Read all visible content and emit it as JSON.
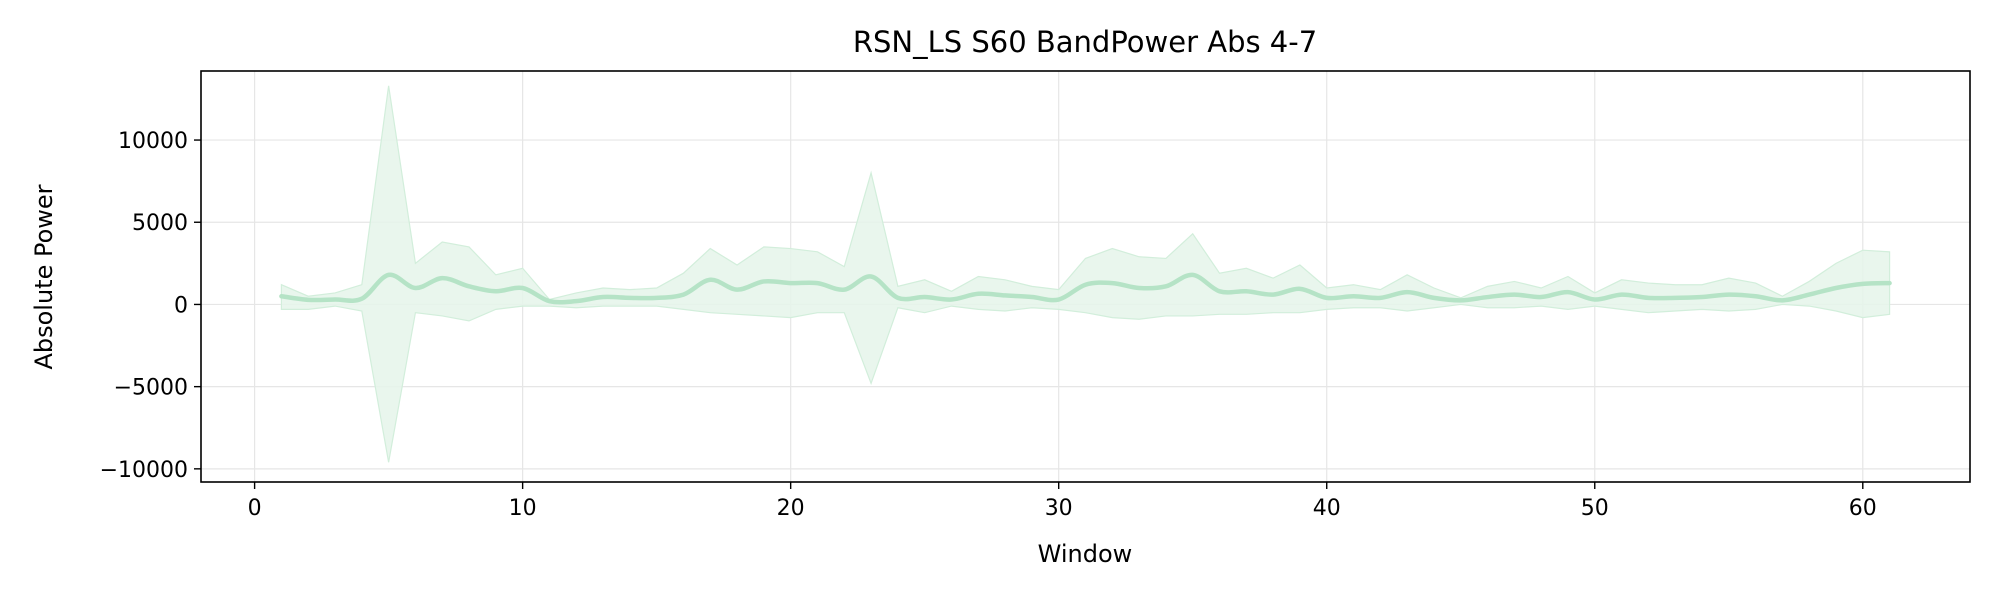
{
  "chart_data": {
    "type": "line",
    "title": "RSN_LS S60 BandPower Abs 4-7",
    "xlabel": "Window",
    "ylabel": "Absolute Power",
    "xlim": [
      -2,
      64
    ],
    "ylim": [
      -10800,
      14200
    ],
    "xticks": [
      0,
      10,
      20,
      30,
      40,
      50,
      60
    ],
    "yticks": [
      -10000,
      -5000,
      0,
      5000,
      10000
    ],
    "ytick_labels": [
      "−10000",
      "−5000",
      "0",
      "5000",
      "10000"
    ],
    "grid": true,
    "legend": "none",
    "colors": {
      "line": "#b5e3c6",
      "band": "#e5f5ea",
      "band_edge": "#d2eedb",
      "grid": "#e6e6e6",
      "axis": "#000000"
    },
    "series": [
      {
        "x": [
          1,
          2,
          3,
          4,
          5,
          6,
          7,
          8,
          9,
          10,
          11,
          12,
          13,
          14,
          15,
          16,
          17,
          18,
          19,
          20,
          21,
          22,
          23,
          24,
          25,
          26,
          27,
          28,
          29,
          30,
          31,
          32,
          33,
          34,
          35,
          36,
          37,
          38,
          39,
          40,
          41,
          42,
          43,
          44,
          45,
          46,
          47,
          48,
          49,
          50,
          51,
          52,
          53,
          54,
          55,
          56,
          57,
          58,
          59,
          60,
          61
        ],
        "mean": [
          500,
          280,
          300,
          350,
          1800,
          1000,
          1600,
          1100,
          800,
          1000,
          200,
          200,
          450,
          400,
          400,
          600,
          1500,
          900,
          1400,
          1300,
          1300,
          900,
          1700,
          400,
          450,
          300,
          650,
          550,
          450,
          300,
          1200,
          1300,
          1000,
          1100,
          1800,
          800,
          800,
          600,
          950,
          400,
          500,
          400,
          750,
          400,
          250,
          450,
          600,
          450,
          750,
          300,
          600,
          400,
          400,
          450,
          600,
          500,
          250,
          600,
          1000,
          1250,
          1300
        ],
        "upper": [
          1200,
          500,
          700,
          1200,
          13300,
          2500,
          3800,
          3500,
          1800,
          2200,
          300,
          700,
          1000,
          900,
          1000,
          1900,
          3400,
          2400,
          3500,
          3400,
          3200,
          2300,
          8000,
          1100,
          1500,
          800,
          1700,
          1500,
          1100,
          900,
          2800,
          3400,
          2900,
          2800,
          4300,
          1900,
          2200,
          1600,
          2400,
          1000,
          1200,
          900,
          1800,
          1000,
          400,
          1100,
          1400,
          1000,
          1700,
          700,
          1500,
          1300,
          1200,
          1200,
          1600,
          1300,
          500,
          1400,
          2500,
          3300,
          3200
        ],
        "lower": [
          -300,
          -300,
          -100,
          -400,
          -9600,
          -500,
          -700,
          -1000,
          -300,
          -100,
          -100,
          -200,
          -100,
          -100,
          -100,
          -300,
          -500,
          -600,
          -700,
          -800,
          -500,
          -500,
          -4800,
          -200,
          -500,
          -100,
          -300,
          -400,
          -200,
          -300,
          -500,
          -800,
          -900,
          -700,
          -700,
          -600,
          -600,
          -500,
          -500,
          -300,
          -200,
          -200,
          -400,
          -200,
          0,
          -200,
          -200,
          -100,
          -300,
          -100,
          -300,
          -500,
          -400,
          -300,
          -400,
          -300,
          0,
          -100,
          -400,
          -800,
          -600
        ]
      }
    ]
  }
}
